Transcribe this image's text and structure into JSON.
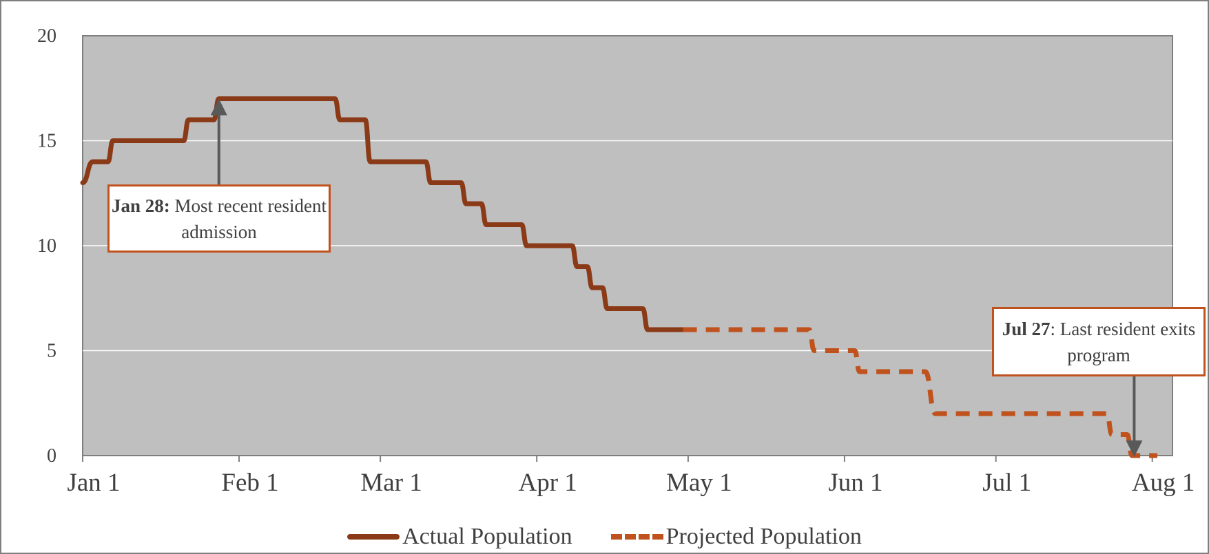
{
  "chart_data": {
    "type": "line",
    "title": "",
    "xlabel": "",
    "ylabel": "",
    "ylim": [
      0,
      20
    ],
    "yticks": [
      "0",
      "5",
      "10",
      "15",
      "20"
    ],
    "xlim": [
      "2018-01-01",
      "2018-08-05"
    ],
    "xticks": [
      {
        "date": "2018-01-01",
        "label": "Jan 1"
      },
      {
        "date": "2018-02-01",
        "label": "Feb 1"
      },
      {
        "date": "2018-03-01",
        "label": "Mar 1"
      },
      {
        "date": "2018-04-01",
        "label": "Apr 1"
      },
      {
        "date": "2018-05-01",
        "label": "May 1"
      },
      {
        "date": "2018-06-01",
        "label": "Jun 1"
      },
      {
        "date": "2018-07-01",
        "label": "Jul 1"
      },
      {
        "date": "2018-08-01",
        "label": "Aug 1"
      }
    ],
    "grid": true,
    "legend_position": "bottom",
    "series": [
      {
        "name": "Actual Population",
        "color": "#8b3a17",
        "style": "solid",
        "points": [
          [
            "2018-01-01",
            13
          ],
          [
            "2018-01-03",
            14
          ],
          [
            "2018-01-06",
            14
          ],
          [
            "2018-01-07",
            15
          ],
          [
            "2018-01-21",
            15
          ],
          [
            "2018-01-22",
            16
          ],
          [
            "2018-01-27",
            16
          ],
          [
            "2018-01-28",
            17
          ],
          [
            "2018-02-20",
            17
          ],
          [
            "2018-02-21",
            16
          ],
          [
            "2018-02-26",
            16
          ],
          [
            "2018-02-27",
            14
          ],
          [
            "2018-03-10",
            14
          ],
          [
            "2018-03-11",
            13
          ],
          [
            "2018-03-17",
            13
          ],
          [
            "2018-03-18",
            12
          ],
          [
            "2018-03-21",
            12
          ],
          [
            "2018-03-22",
            11
          ],
          [
            "2018-03-29",
            11
          ],
          [
            "2018-03-30",
            10
          ],
          [
            "2018-04-08",
            10
          ],
          [
            "2018-04-09",
            9
          ],
          [
            "2018-04-11",
            9
          ],
          [
            "2018-04-12",
            8
          ],
          [
            "2018-04-14",
            8
          ],
          [
            "2018-04-15",
            7
          ],
          [
            "2018-04-22",
            7
          ],
          [
            "2018-04-23",
            6
          ],
          [
            "2018-04-30",
            6
          ]
        ]
      },
      {
        "name": "Projected Population",
        "color": "#c0521d",
        "style": "dashed",
        "points": [
          [
            "2018-04-30",
            6
          ],
          [
            "2018-05-25",
            6
          ],
          [
            "2018-05-26",
            5
          ],
          [
            "2018-06-03",
            5
          ],
          [
            "2018-06-04",
            4
          ],
          [
            "2018-06-17",
            4
          ],
          [
            "2018-06-19",
            2
          ],
          [
            "2018-07-23",
            2
          ],
          [
            "2018-07-24",
            1
          ],
          [
            "2018-07-27",
            1
          ],
          [
            "2018-07-28",
            0
          ],
          [
            "2018-08-02",
            0
          ]
        ]
      }
    ],
    "annotations": [
      {
        "bold": "Jan 28:",
        "text": " Most recent resident admission",
        "date": "2018-01-28",
        "value": 17
      },
      {
        "bold": "Jul 27",
        "text": ": Last resident exits program",
        "date": "2018-07-28",
        "value": 0
      }
    ]
  }
}
